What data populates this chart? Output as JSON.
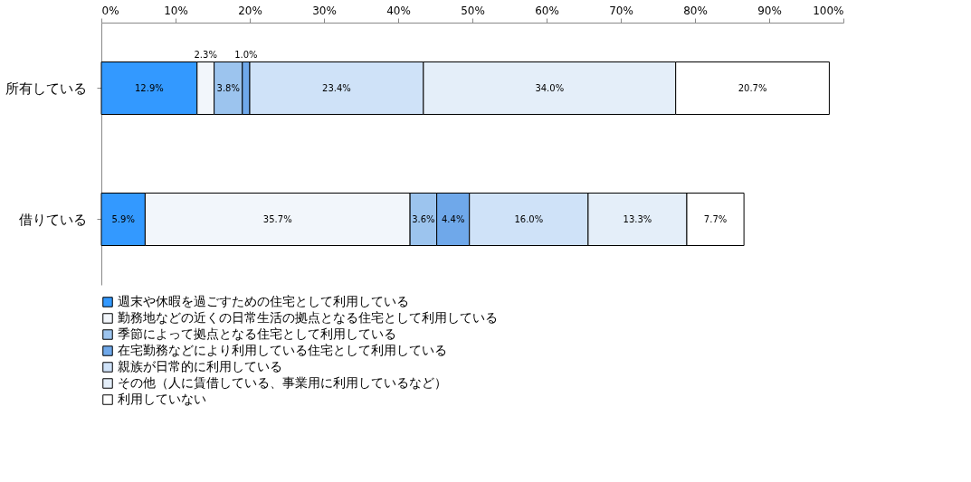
{
  "chart_data": {
    "type": "bar",
    "orientation": "horizontal",
    "stacked": true,
    "categories": [
      "所有している",
      "借りている"
    ],
    "series": [
      {
        "name": "週末や休暇を過ごすための住宅として利用している",
        "color": "#3399ff",
        "values": [
          12.9,
          5.9
        ],
        "value_labels": [
          "12.9%",
          "5.9%"
        ]
      },
      {
        "name": "勤務地などの近くの日常生活の拠点となる住宅として利用している",
        "color": "#f2f6fb",
        "values": [
          2.3,
          35.7
        ],
        "value_labels": [
          "2.3%",
          "35.7%"
        ]
      },
      {
        "name": "季節によって拠点となる住宅として利用している",
        "color": "#9cc4ee",
        "values": [
          3.8,
          3.6
        ],
        "value_labels": [
          "3.8%",
          "3.6%"
        ]
      },
      {
        "name": "在宅勤務などにより利用している住宅として利用している",
        "color": "#6fa8ea",
        "values": [
          1.0,
          4.4
        ],
        "value_labels": [
          "1.0%",
          "4.4%"
        ]
      },
      {
        "name": "親族が日常的に利用している",
        "color": "#cfe2f8",
        "values": [
          23.4,
          16.0
        ],
        "value_labels": [
          "23.4%",
          "16.0%"
        ]
      },
      {
        "name": "その他（人に賃借している、事業用に利用しているなど）",
        "color": "#e4eef9",
        "values": [
          34.0,
          13.3
        ],
        "value_labels": [
          "34.0%",
          "13.3%"
        ]
      },
      {
        "name": "利用していない",
        "color": "#ffffff",
        "values": [
          20.7,
          7.7
        ],
        "value_labels": [
          "20.7%",
          "7.7%"
        ]
      }
    ],
    "xlim": [
      0,
      100
    ],
    "xticks": [
      {
        "value": 0,
        "label": "0%"
      },
      {
        "value": 10,
        "label": "10%"
      },
      {
        "value": 20,
        "label": "20%"
      },
      {
        "value": 30,
        "label": "30%"
      },
      {
        "value": 40,
        "label": "40%"
      },
      {
        "value": 50,
        "label": "50%"
      },
      {
        "value": 60,
        "label": "60%"
      },
      {
        "value": 70,
        "label": "70%"
      },
      {
        "value": 80,
        "label": "80%"
      },
      {
        "value": 90,
        "label": "90%"
      },
      {
        "value": 100,
        "label": "100%"
      }
    ],
    "grid": false,
    "legend": "bottom"
  }
}
